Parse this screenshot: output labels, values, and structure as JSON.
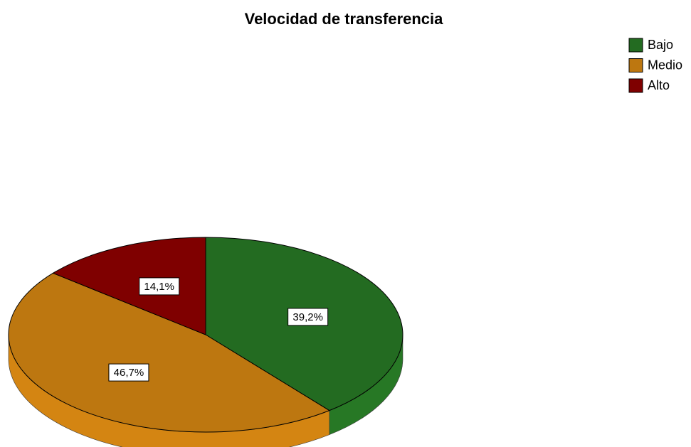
{
  "chart_data": {
    "type": "pie",
    "title": "Velocidad de transferencia",
    "categories": [
      "Bajo",
      "Medio",
      "Alto"
    ],
    "values": [
      39.2,
      46.7,
      14.1
    ],
    "value_labels": [
      "39,2%",
      "46,7%",
      "14,1%"
    ],
    "colors": [
      "#236b21",
      "#bd7710",
      "#7f0000"
    ],
    "legend": "top-right"
  }
}
